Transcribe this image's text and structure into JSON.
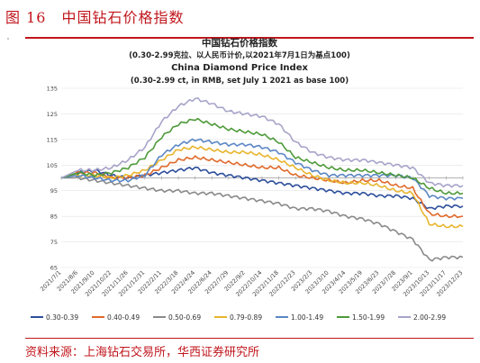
{
  "figure": {
    "label": "图 16　中国钻石价格指数",
    "source": "资料来源：上海钻石交易所，华西证券研究所"
  },
  "chart_data": {
    "type": "line",
    "title": [
      "中国钻石价格指数",
      "(0.30-2.99克拉、以人民币计价,以2021年7月1日为基点100)",
      "China Diamond Price Index",
      "(0.30-2.99 ct, in RMB, set July 1 2021 as base 100)"
    ],
    "xlabel": "",
    "ylabel": "",
    "ylim": [
      65,
      135
    ],
    "yticks": [
      65,
      75,
      85,
      95,
      105,
      115,
      125,
      135
    ],
    "reference_line": 100,
    "legend_position": "bottom",
    "x": [
      "2021/7/1",
      "2021/8/6",
      "2021/9/10",
      "2021/10/22",
      "2021/11/26",
      "2021/12/31",
      "2022/2/11",
      "2022/3/18",
      "2022/4/24",
      "2022/6/24",
      "2022/7/29",
      "2022/9/2",
      "2022/10/14",
      "2022/11/18",
      "2022/12/23",
      "2023/2/3",
      "2023/3/10",
      "2023/4/14",
      "2023/5/19",
      "2023/6/23",
      "2023/7/28",
      "2023/9/1",
      "2023/10/13",
      "2023/11/17",
      "2023/12/23"
    ],
    "series": [
      {
        "name": "0.30-0.39",
        "color": "#2e4f9c",
        "values": [
          100,
          102,
          103,
          101,
          100,
          101,
          102,
          103,
          104,
          102,
          101,
          100,
          99,
          98,
          97,
          96,
          95,
          94,
          94,
          93,
          93,
          92,
          88,
          89,
          89
        ]
      },
      {
        "name": "0.40-0.49",
        "color": "#e06b2c",
        "values": [
          100,
          102,
          102,
          100,
          100,
          101,
          104,
          107,
          108,
          107,
          106,
          105,
          104,
          104,
          101,
          100,
          99,
          98,
          99,
          99,
          97,
          96,
          86,
          85,
          85
        ]
      },
      {
        "name": "0.50-0.69",
        "color": "#8a8a8a",
        "values": [
          100,
          100,
          99,
          98,
          97,
          96,
          95,
          95,
          94,
          94,
          93,
          92,
          91,
          90,
          88,
          88,
          87,
          85,
          84,
          82,
          79,
          76,
          68,
          69,
          69
        ]
      },
      {
        "name": "0.79-0.89",
        "color": "#e8b52e",
        "values": [
          100,
          101,
          101,
          100,
          101,
          103,
          107,
          111,
          112,
          111,
          110,
          110,
          109,
          107,
          104,
          101,
          99,
          98,
          98,
          97,
          95,
          94,
          82,
          81,
          81
        ]
      },
      {
        "name": "1.00-1.49",
        "color": "#5b86c4",
        "values": [
          100,
          101,
          100,
          99,
          99,
          101,
          109,
          113,
          115,
          114,
          113,
          113,
          112,
          110,
          106,
          103,
          101,
          101,
          101,
          101,
          101,
          100,
          93,
          92,
          92
        ]
      },
      {
        "name": "1.50-1.99",
        "color": "#4e9a3a",
        "values": [
          100,
          102,
          101,
          102,
          104,
          108,
          116,
          121,
          123,
          121,
          119,
          118,
          117,
          114,
          108,
          106,
          104,
          103,
          103,
          102,
          101,
          100,
          96,
          94,
          94
        ]
      },
      {
        "name": "2.00-2.99",
        "color": "#a7a4c9",
        "values": [
          100,
          103,
          103,
          104,
          107,
          112,
          122,
          128,
          131,
          129,
          126,
          125,
          124,
          121,
          114,
          110,
          108,
          107,
          107,
          106,
          105,
          104,
          98,
          97,
          97
        ]
      }
    ]
  }
}
